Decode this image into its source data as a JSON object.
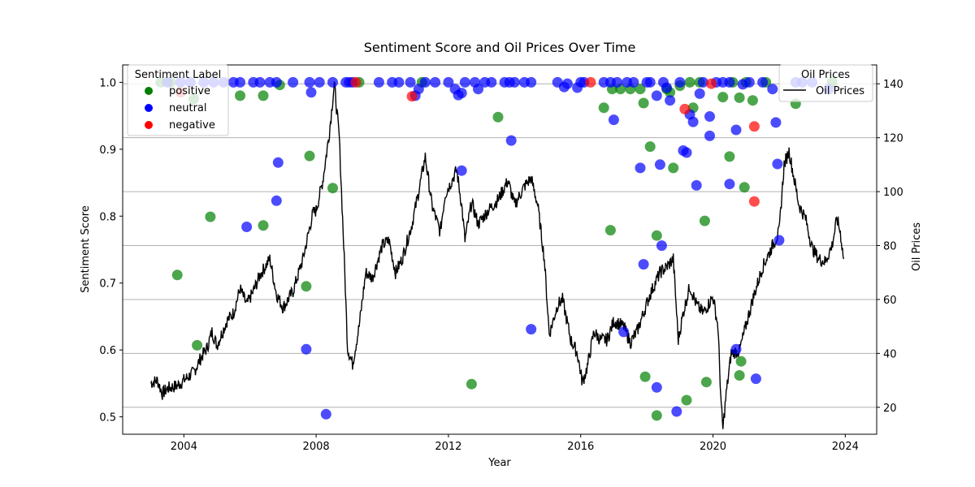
{
  "chart_data": {
    "type": "scatter",
    "title": "Sentiment Score and Oil Prices Over Time",
    "xlabel": "Year",
    "ylabel": "Sentiment Score",
    "y2label": "Oil Prices",
    "xlim": [
      2002.15,
      2024.95
    ],
    "ylim": [
      0.474,
      1.026
    ],
    "y2lim": [
      10,
      147
    ],
    "x_ticks": [
      2004,
      2008,
      2012,
      2016,
      2020,
      2024
    ],
    "y_ticks": [
      0.5,
      0.6,
      0.7,
      0.8,
      0.9,
      1.0
    ],
    "y2_ticks": [
      20,
      40,
      60,
      80,
      100,
      120,
      140
    ],
    "grid": "horizontal lines on secondary axis",
    "legend_sentiment": {
      "title": "Sentiment Label",
      "placement": "top-left",
      "entries": [
        {
          "label": "positive",
          "color": "#008000"
        },
        {
          "label": "neutral",
          "color": "#0000ff"
        },
        {
          "label": "negative",
          "color": "#ff0000"
        }
      ]
    },
    "legend_oil": {
      "title": "Oil Prices",
      "placement": "top-right",
      "entries": [
        {
          "label": "Oil Prices",
          "color": "#000000"
        }
      ]
    },
    "series": [
      {
        "name": "positive",
        "color": "#008000",
        "points": [
          [
            2003.3,
            1.0
          ],
          [
            2003.6,
            1.0
          ],
          [
            2003.8,
            0.712
          ],
          [
            2004.3,
            0.975
          ],
          [
            2004.4,
            0.607
          ],
          [
            2004.8,
            0.799
          ],
          [
            2005.7,
            0.98
          ],
          [
            2006.4,
            0.98
          ],
          [
            2006.4,
            0.786
          ],
          [
            2006.9,
            0.996
          ],
          [
            2007.7,
            0.695
          ],
          [
            2007.8,
            0.89
          ],
          [
            2008.5,
            0.842
          ],
          [
            2009.3,
            1.0
          ],
          [
            2011.2,
            1.0
          ],
          [
            2012.7,
            0.549
          ],
          [
            2013.5,
            0.948
          ],
          [
            2016.7,
            0.962
          ],
          [
            2016.9,
            0.779
          ],
          [
            2016.95,
            0.99
          ],
          [
            2017.2,
            0.99
          ],
          [
            2017.5,
            0.99
          ],
          [
            2017.8,
            0.99
          ],
          [
            2017.9,
            0.969
          ],
          [
            2017.95,
            0.56
          ],
          [
            2018.1,
            0.904
          ],
          [
            2018.3,
            0.771
          ],
          [
            2018.3,
            0.502
          ],
          [
            2018.6,
            0.99
          ],
          [
            2018.7,
            0.985
          ],
          [
            2018.8,
            0.872
          ],
          [
            2019.0,
            0.995
          ],
          [
            2019.2,
            0.525
          ],
          [
            2019.3,
            1.0
          ],
          [
            2019.4,
            0.962
          ],
          [
            2019.6,
            1.0
          ],
          [
            2019.75,
            0.793
          ],
          [
            2019.8,
            0.552
          ],
          [
            2020.3,
            0.978
          ],
          [
            2020.5,
            0.889
          ],
          [
            2020.6,
            1.0
          ],
          [
            2020.8,
            0.977
          ],
          [
            2020.8,
            0.562
          ],
          [
            2020.85,
            0.583
          ],
          [
            2020.95,
            0.843
          ],
          [
            2021.0,
            1.0
          ],
          [
            2021.2,
            0.973
          ],
          [
            2021.6,
            1.0
          ],
          [
            2022.5,
            0.968
          ],
          [
            2023.6,
            1.0
          ]
        ]
      },
      {
        "name": "neutral",
        "color": "#0000ff",
        "points": [
          [
            2003.5,
            1.0
          ],
          [
            2003.9,
            1.0
          ],
          [
            2004.2,
            1.0
          ],
          [
            2004.6,
            1.0
          ],
          [
            2004.9,
            1.0
          ],
          [
            2005.2,
            1.0
          ],
          [
            2005.5,
            1.0
          ],
          [
            2005.7,
            1.0
          ],
          [
            2005.9,
            0.784
          ],
          [
            2006.1,
            1.0
          ],
          [
            2006.3,
            1.0
          ],
          [
            2006.6,
            1.0
          ],
          [
            2006.8,
            1.0
          ],
          [
            2006.8,
            0.823
          ],
          [
            2006.85,
            0.88
          ],
          [
            2007.3,
            1.0
          ],
          [
            2007.7,
            0.601
          ],
          [
            2007.8,
            1.0
          ],
          [
            2007.85,
            0.985
          ],
          [
            2008.1,
            1.0
          ],
          [
            2008.3,
            0.504
          ],
          [
            2008.5,
            1.0
          ],
          [
            2008.9,
            1.0
          ],
          [
            2009.0,
            1.0
          ],
          [
            2009.1,
            1.0
          ],
          [
            2009.9,
            1.0
          ],
          [
            2010.3,
            1.0
          ],
          [
            2010.5,
            1.0
          ],
          [
            2010.85,
            1.0
          ],
          [
            2011.0,
            0.98
          ],
          [
            2011.1,
            0.99
          ],
          [
            2011.3,
            1.0
          ],
          [
            2011.6,
            1.0
          ],
          [
            2012.0,
            1.0
          ],
          [
            2012.2,
            0.99
          ],
          [
            2012.3,
            0.981
          ],
          [
            2012.4,
            0.984
          ],
          [
            2012.4,
            0.868
          ],
          [
            2012.5,
            1.0
          ],
          [
            2012.8,
            1.0
          ],
          [
            2012.9,
            0.99
          ],
          [
            2013.1,
            1.0
          ],
          [
            2013.3,
            1.0
          ],
          [
            2013.7,
            1.0
          ],
          [
            2013.85,
            1.0
          ],
          [
            2013.9,
            0.913
          ],
          [
            2014.0,
            1.0
          ],
          [
            2014.3,
            1.0
          ],
          [
            2014.5,
            1.0
          ],
          [
            2014.5,
            0.631
          ],
          [
            2015.3,
            1.0
          ],
          [
            2015.5,
            0.993
          ],
          [
            2015.6,
            0.998
          ],
          [
            2015.9,
            0.992
          ],
          [
            2016.0,
            1.0
          ],
          [
            2016.1,
            1.0
          ],
          [
            2016.7,
            1.0
          ],
          [
            2016.9,
            1.0
          ],
          [
            2017.0,
            0.944
          ],
          [
            2017.1,
            1.0
          ],
          [
            2017.3,
            0.627
          ],
          [
            2017.4,
            1.0
          ],
          [
            2017.6,
            1.0
          ],
          [
            2017.8,
            0.872
          ],
          [
            2017.9,
            0.728
          ],
          [
            2018.0,
            1.0
          ],
          [
            2018.1,
            1.0
          ],
          [
            2018.3,
            0.98
          ],
          [
            2018.3,
            0.544
          ],
          [
            2018.4,
            0.877
          ],
          [
            2018.45,
            0.756
          ],
          [
            2018.5,
            1.0
          ],
          [
            2018.6,
            0.992
          ],
          [
            2018.7,
            0.973
          ],
          [
            2018.9,
            0.508
          ],
          [
            2019.0,
            1.0
          ],
          [
            2019.1,
            0.898
          ],
          [
            2019.2,
            0.895
          ],
          [
            2019.3,
            0.952
          ],
          [
            2019.4,
            0.941
          ],
          [
            2019.5,
            0.846
          ],
          [
            2019.6,
            0.983
          ],
          [
            2019.7,
            1.0
          ],
          [
            2019.9,
            0.92
          ],
          [
            2019.9,
            0.949
          ],
          [
            2020.1,
            1.0
          ],
          [
            2020.3,
            1.0
          ],
          [
            2020.5,
            1.0
          ],
          [
            2020.5,
            0.848
          ],
          [
            2020.7,
            0.929
          ],
          [
            2020.7,
            0.601
          ],
          [
            2020.9,
            0.997
          ],
          [
            2021.1,
            1.0
          ],
          [
            2021.3,
            0.557
          ],
          [
            2021.5,
            1.0
          ],
          [
            2021.8,
            0.99
          ],
          [
            2021.9,
            0.94
          ],
          [
            2021.95,
            0.878
          ],
          [
            2022.0,
            0.764
          ],
          [
            2022.5,
            1.0
          ],
          [
            2022.7,
            1.0
          ],
          [
            2023.0,
            1.0
          ],
          [
            2023.5,
            0.99
          ]
        ]
      },
      {
        "name": "negative",
        "color": "#ff0000",
        "points": [
          [
            2003.9,
            0.985
          ],
          [
            2009.2,
            1.0
          ],
          [
            2010.9,
            0.979
          ],
          [
            2016.3,
            1.0
          ],
          [
            2019.15,
            0.96
          ],
          [
            2019.95,
            0.998
          ],
          [
            2021.25,
            0.934
          ],
          [
            2021.25,
            0.822
          ]
        ]
      }
    ],
    "oil_prices": {
      "name": "Oil Prices",
      "color": "#000000",
      "points": [
        [
          2003.0,
          29
        ],
        [
          2003.2,
          30
        ],
        [
          2003.35,
          25
        ],
        [
          2003.5,
          27
        ],
        [
          2003.8,
          28
        ],
        [
          2004.0,
          30
        ],
        [
          2004.3,
          33
        ],
        [
          2004.5,
          38
        ],
        [
          2004.7,
          42
        ],
        [
          2004.85,
          48
        ],
        [
          2005.0,
          43
        ],
        [
          2005.3,
          52
        ],
        [
          2005.5,
          55
        ],
        [
          2005.7,
          64
        ],
        [
          2005.9,
          58
        ],
        [
          2006.1,
          63
        ],
        [
          2006.3,
          69
        ],
        [
          2006.6,
          75
        ],
        [
          2006.8,
          62
        ],
        [
          2007.0,
          57
        ],
        [
          2007.3,
          63
        ],
        [
          2007.6,
          75
        ],
        [
          2007.9,
          92
        ],
        [
          2008.0,
          93
        ],
        [
          2008.2,
          104
        ],
        [
          2008.4,
          122
        ],
        [
          2008.55,
          140
        ],
        [
          2008.7,
          120
        ],
        [
          2008.85,
          75
        ],
        [
          2008.95,
          42
        ],
        [
          2009.1,
          36
        ],
        [
          2009.3,
          50
        ],
        [
          2009.5,
          70
        ],
        [
          2009.7,
          68
        ],
        [
          2010.0,
          80
        ],
        [
          2010.2,
          82
        ],
        [
          2010.4,
          70
        ],
        [
          2010.6,
          75
        ],
        [
          2010.9,
          88
        ],
        [
          2011.1,
          100
        ],
        [
          2011.3,
          113
        ],
        [
          2011.5,
          95
        ],
        [
          2011.75,
          85
        ],
        [
          2011.9,
          99
        ],
        [
          2012.1,
          104
        ],
        [
          2012.25,
          108
        ],
        [
          2012.4,
          95
        ],
        [
          2012.5,
          82
        ],
        [
          2012.7,
          96
        ],
        [
          2012.9,
          88
        ],
        [
          2013.2,
          93
        ],
        [
          2013.5,
          97
        ],
        [
          2013.8,
          104
        ],
        [
          2014.0,
          95
        ],
        [
          2014.3,
          102
        ],
        [
          2014.5,
          105
        ],
        [
          2014.7,
          95
        ],
        [
          2014.9,
          75
        ],
        [
          2015.05,
          47
        ],
        [
          2015.3,
          58
        ],
        [
          2015.45,
          60
        ],
        [
          2015.7,
          45
        ],
        [
          2015.9,
          40
        ],
        [
          2016.05,
          29
        ],
        [
          2016.2,
          35
        ],
        [
          2016.4,
          48
        ],
        [
          2016.6,
          45
        ],
        [
          2016.8,
          45
        ],
        [
          2017.0,
          52
        ],
        [
          2017.3,
          50
        ],
        [
          2017.5,
          44
        ],
        [
          2017.7,
          48
        ],
        [
          2017.9,
          55
        ],
        [
          2018.1,
          62
        ],
        [
          2018.4,
          70
        ],
        [
          2018.6,
          72
        ],
        [
          2018.8,
          75
        ],
        [
          2018.95,
          45
        ],
        [
          2019.1,
          55
        ],
        [
          2019.3,
          65
        ],
        [
          2019.5,
          58
        ],
        [
          2019.7,
          55
        ],
        [
          2019.9,
          59
        ],
        [
          2020.0,
          61
        ],
        [
          2020.15,
          50
        ],
        [
          2020.25,
          20
        ],
        [
          2020.3,
          12
        ],
        [
          2020.4,
          25
        ],
        [
          2020.55,
          40
        ],
        [
          2020.8,
          41
        ],
        [
          2020.95,
          48
        ],
        [
          2021.2,
          60
        ],
        [
          2021.5,
          72
        ],
        [
          2021.8,
          80
        ],
        [
          2022.0,
          85
        ],
        [
          2022.15,
          110
        ],
        [
          2022.3,
          115
        ],
        [
          2022.45,
          105
        ],
        [
          2022.6,
          95
        ],
        [
          2022.8,
          90
        ],
        [
          2023.0,
          79
        ],
        [
          2023.2,
          75
        ],
        [
          2023.4,
          74
        ],
        [
          2023.6,
          80
        ],
        [
          2023.75,
          90
        ],
        [
          2023.85,
          85
        ],
        [
          2023.95,
          75
        ]
      ]
    }
  }
}
